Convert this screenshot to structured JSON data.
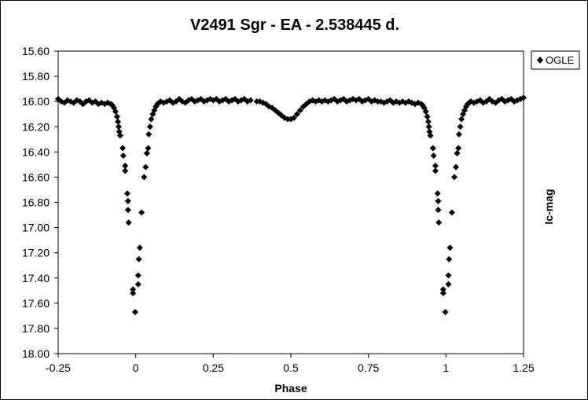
{
  "chart_data": {
    "type": "scatter",
    "title": "V2491 Sgr - EA - 2.538445 d.",
    "xlabel": "Phase",
    "ylabel": "Ic-mag",
    "xlim": [
      -0.25,
      1.25
    ],
    "ylim": [
      15.6,
      18.0
    ],
    "y_inverted": true,
    "grid": false,
    "legend_position": "top-right",
    "x_ticks": [
      -0.25,
      0,
      0.25,
      0.5,
      0.75,
      1,
      1.25
    ],
    "x_tick_labels": [
      "-0.25",
      "0",
      "0.25",
      "0.5",
      "0.75",
      "1",
      "1.25"
    ],
    "y_ticks": [
      15.6,
      15.8,
      16.0,
      16.2,
      16.4,
      16.6,
      16.8,
      17.0,
      17.2,
      17.4,
      17.6,
      17.8,
      18.0
    ],
    "y_tick_labels": [
      "15.60",
      "15.80",
      "16.00",
      "16.20",
      "16.40",
      "16.60",
      "16.80",
      "17.00",
      "17.20",
      "17.40",
      "17.60",
      "17.80",
      "18.00"
    ],
    "series": [
      {
        "name": "OGLE",
        "color": "#000000",
        "marker": "diamond",
        "points": [
          [
            -0.25,
            15.98
          ],
          [
            -0.24,
            16.0
          ],
          [
            -0.23,
            16.01
          ],
          [
            -0.22,
            15.99
          ],
          [
            -0.21,
            16.0
          ],
          [
            -0.2,
            16.01
          ],
          [
            -0.19,
            15.99
          ],
          [
            -0.18,
            16.0
          ],
          [
            -0.17,
            16.02
          ],
          [
            -0.16,
            16.0
          ],
          [
            -0.15,
            15.99
          ],
          [
            -0.14,
            16.01
          ],
          [
            -0.13,
            16.0
          ],
          [
            -0.12,
            16.02
          ],
          [
            -0.11,
            16.01
          ],
          [
            -0.1,
            16.02
          ],
          [
            -0.09,
            16.01
          ],
          [
            -0.08,
            16.02
          ],
          [
            -0.075,
            16.03
          ],
          [
            -0.07,
            16.05
          ],
          [
            -0.065,
            16.08
          ],
          [
            -0.06,
            16.12
          ],
          [
            -0.057,
            16.16
          ],
          [
            -0.055,
            16.2
          ],
          [
            -0.053,
            16.24
          ],
          [
            -0.05,
            16.27
          ],
          [
            -0.042,
            16.37
          ],
          [
            -0.04,
            16.43
          ],
          [
            -0.034,
            16.51
          ],
          [
            -0.034,
            16.55
          ],
          [
            -0.027,
            16.73
          ],
          [
            -0.025,
            16.79
          ],
          [
            -0.025,
            16.86
          ],
          [
            -0.023,
            16.96
          ],
          [
            -0.009,
            17.49
          ],
          [
            -0.009,
            17.52
          ],
          [
            -0.002,
            17.67
          ],
          [
            0.008,
            17.38
          ],
          [
            0.008,
            17.45
          ],
          [
            0.01,
            17.25
          ],
          [
            0.013,
            17.16
          ],
          [
            0.019,
            16.88
          ],
          [
            0.027,
            16.6
          ],
          [
            0.032,
            16.52
          ],
          [
            0.036,
            16.41
          ],
          [
            0.04,
            16.37
          ],
          [
            0.042,
            16.26
          ],
          [
            0.046,
            16.2
          ],
          [
            0.05,
            16.14
          ],
          [
            0.055,
            16.1
          ],
          [
            0.06,
            16.07
          ],
          [
            0.065,
            16.04
          ],
          [
            0.07,
            16.02
          ],
          [
            0.075,
            16.01
          ],
          [
            0.08,
            16.0
          ],
          [
            0.09,
            16.01
          ],
          [
            0.1,
            16.0
          ],
          [
            0.11,
            15.99
          ],
          [
            0.12,
            16.01
          ],
          [
            0.13,
            16.0
          ],
          [
            0.14,
            15.98
          ],
          [
            0.15,
            16.0
          ],
          [
            0.16,
            16.01
          ],
          [
            0.17,
            15.99
          ],
          [
            0.18,
            15.98
          ],
          [
            0.19,
            16.0
          ],
          [
            0.2,
            15.99
          ],
          [
            0.21,
            15.98
          ],
          [
            0.22,
            16.0
          ],
          [
            0.23,
            15.99
          ],
          [
            0.24,
            15.98
          ],
          [
            0.25,
            15.99
          ],
          [
            0.26,
            15.98
          ],
          [
            0.27,
            16.0
          ],
          [
            0.28,
            15.99
          ],
          [
            0.29,
            15.98
          ],
          [
            0.3,
            16.0
          ],
          [
            0.31,
            15.99
          ],
          [
            0.32,
            15.98
          ],
          [
            0.33,
            16.0
          ],
          [
            0.34,
            15.99
          ],
          [
            0.35,
            15.98
          ],
          [
            0.36,
            16.0
          ],
          [
            0.37,
            15.99
          ],
          [
            0.39,
            16.0
          ],
          [
            0.4,
            16.0
          ],
          [
            0.41,
            16.01
          ],
          [
            0.42,
            16.02
          ],
          [
            0.43,
            16.04
          ],
          [
            0.44,
            16.05
          ],
          [
            0.45,
            16.07
          ],
          [
            0.46,
            16.09
          ],
          [
            0.47,
            16.11
          ],
          [
            0.48,
            16.13
          ],
          [
            0.49,
            16.14
          ],
          [
            0.5,
            16.14
          ],
          [
            0.51,
            16.13
          ],
          [
            0.52,
            16.1
          ],
          [
            0.53,
            16.07
          ],
          [
            0.54,
            16.04
          ],
          [
            0.55,
            16.02
          ],
          [
            0.56,
            16.0
          ],
          [
            0.57,
            15.99
          ],
          [
            0.58,
            16.0
          ],
          [
            0.59,
            15.99
          ],
          [
            0.6,
            16.0
          ],
          [
            0.61,
            15.99
          ],
          [
            0.62,
            16.0
          ],
          [
            0.63,
            15.99
          ],
          [
            0.64,
            15.98
          ],
          [
            0.65,
            16.0
          ],
          [
            0.66,
            15.99
          ],
          [
            0.67,
            15.98
          ],
          [
            0.68,
            16.0
          ],
          [
            0.69,
            15.99
          ],
          [
            0.7,
            15.98
          ],
          [
            0.71,
            15.99
          ],
          [
            0.72,
            15.98
          ],
          [
            0.73,
            16.0
          ],
          [
            0.74,
            15.99
          ],
          [
            0.75,
            15.98
          ],
          [
            0.76,
            16.0
          ],
          [
            0.77,
            15.99
          ],
          [
            0.78,
            16.0
          ],
          [
            0.79,
            16.0
          ],
          [
            0.8,
            16.01
          ],
          [
            0.81,
            16.0
          ],
          [
            0.82,
            15.99
          ],
          [
            0.83,
            16.01
          ],
          [
            0.84,
            16.0
          ],
          [
            0.85,
            16.01
          ],
          [
            0.86,
            16.0
          ],
          [
            0.87,
            16.01
          ],
          [
            0.88,
            16.0
          ],
          [
            0.89,
            16.01
          ],
          [
            0.9,
            16.02
          ],
          [
            0.91,
            16.01
          ],
          [
            0.92,
            16.02
          ],
          [
            0.925,
            16.03
          ],
          [
            0.93,
            16.05
          ],
          [
            0.935,
            16.08
          ],
          [
            0.94,
            16.12
          ],
          [
            0.943,
            16.16
          ],
          [
            0.945,
            16.2
          ],
          [
            0.947,
            16.24
          ],
          [
            0.95,
            16.27
          ],
          [
            0.958,
            16.37
          ],
          [
            0.96,
            16.43
          ],
          [
            0.966,
            16.51
          ],
          [
            0.966,
            16.55
          ],
          [
            0.973,
            16.73
          ],
          [
            0.975,
            16.79
          ],
          [
            0.975,
            16.86
          ],
          [
            0.977,
            16.96
          ],
          [
            0.991,
            17.49
          ],
          [
            0.991,
            17.52
          ],
          [
            0.998,
            17.67
          ],
          [
            1.008,
            17.38
          ],
          [
            1.008,
            17.45
          ],
          [
            1.01,
            17.25
          ],
          [
            1.013,
            17.16
          ],
          [
            1.019,
            16.88
          ],
          [
            1.027,
            16.6
          ],
          [
            1.032,
            16.52
          ],
          [
            1.036,
            16.41
          ],
          [
            1.04,
            16.37
          ],
          [
            1.042,
            16.26
          ],
          [
            1.046,
            16.2
          ],
          [
            1.05,
            16.14
          ],
          [
            1.055,
            16.1
          ],
          [
            1.06,
            16.07
          ],
          [
            1.065,
            16.04
          ],
          [
            1.07,
            16.02
          ],
          [
            1.075,
            16.01
          ],
          [
            1.08,
            16.0
          ],
          [
            1.09,
            16.01
          ],
          [
            1.1,
            16.0
          ],
          [
            1.11,
            15.99
          ],
          [
            1.12,
            16.01
          ],
          [
            1.13,
            16.0
          ],
          [
            1.14,
            15.98
          ],
          [
            1.15,
            16.0
          ],
          [
            1.16,
            16.01
          ],
          [
            1.17,
            15.99
          ],
          [
            1.18,
            15.98
          ],
          [
            1.19,
            16.0
          ],
          [
            1.2,
            15.99
          ],
          [
            1.21,
            15.98
          ],
          [
            1.22,
            16.0
          ],
          [
            1.23,
            15.99
          ],
          [
            1.24,
            15.98
          ],
          [
            1.25,
            15.97
          ]
        ]
      }
    ]
  }
}
